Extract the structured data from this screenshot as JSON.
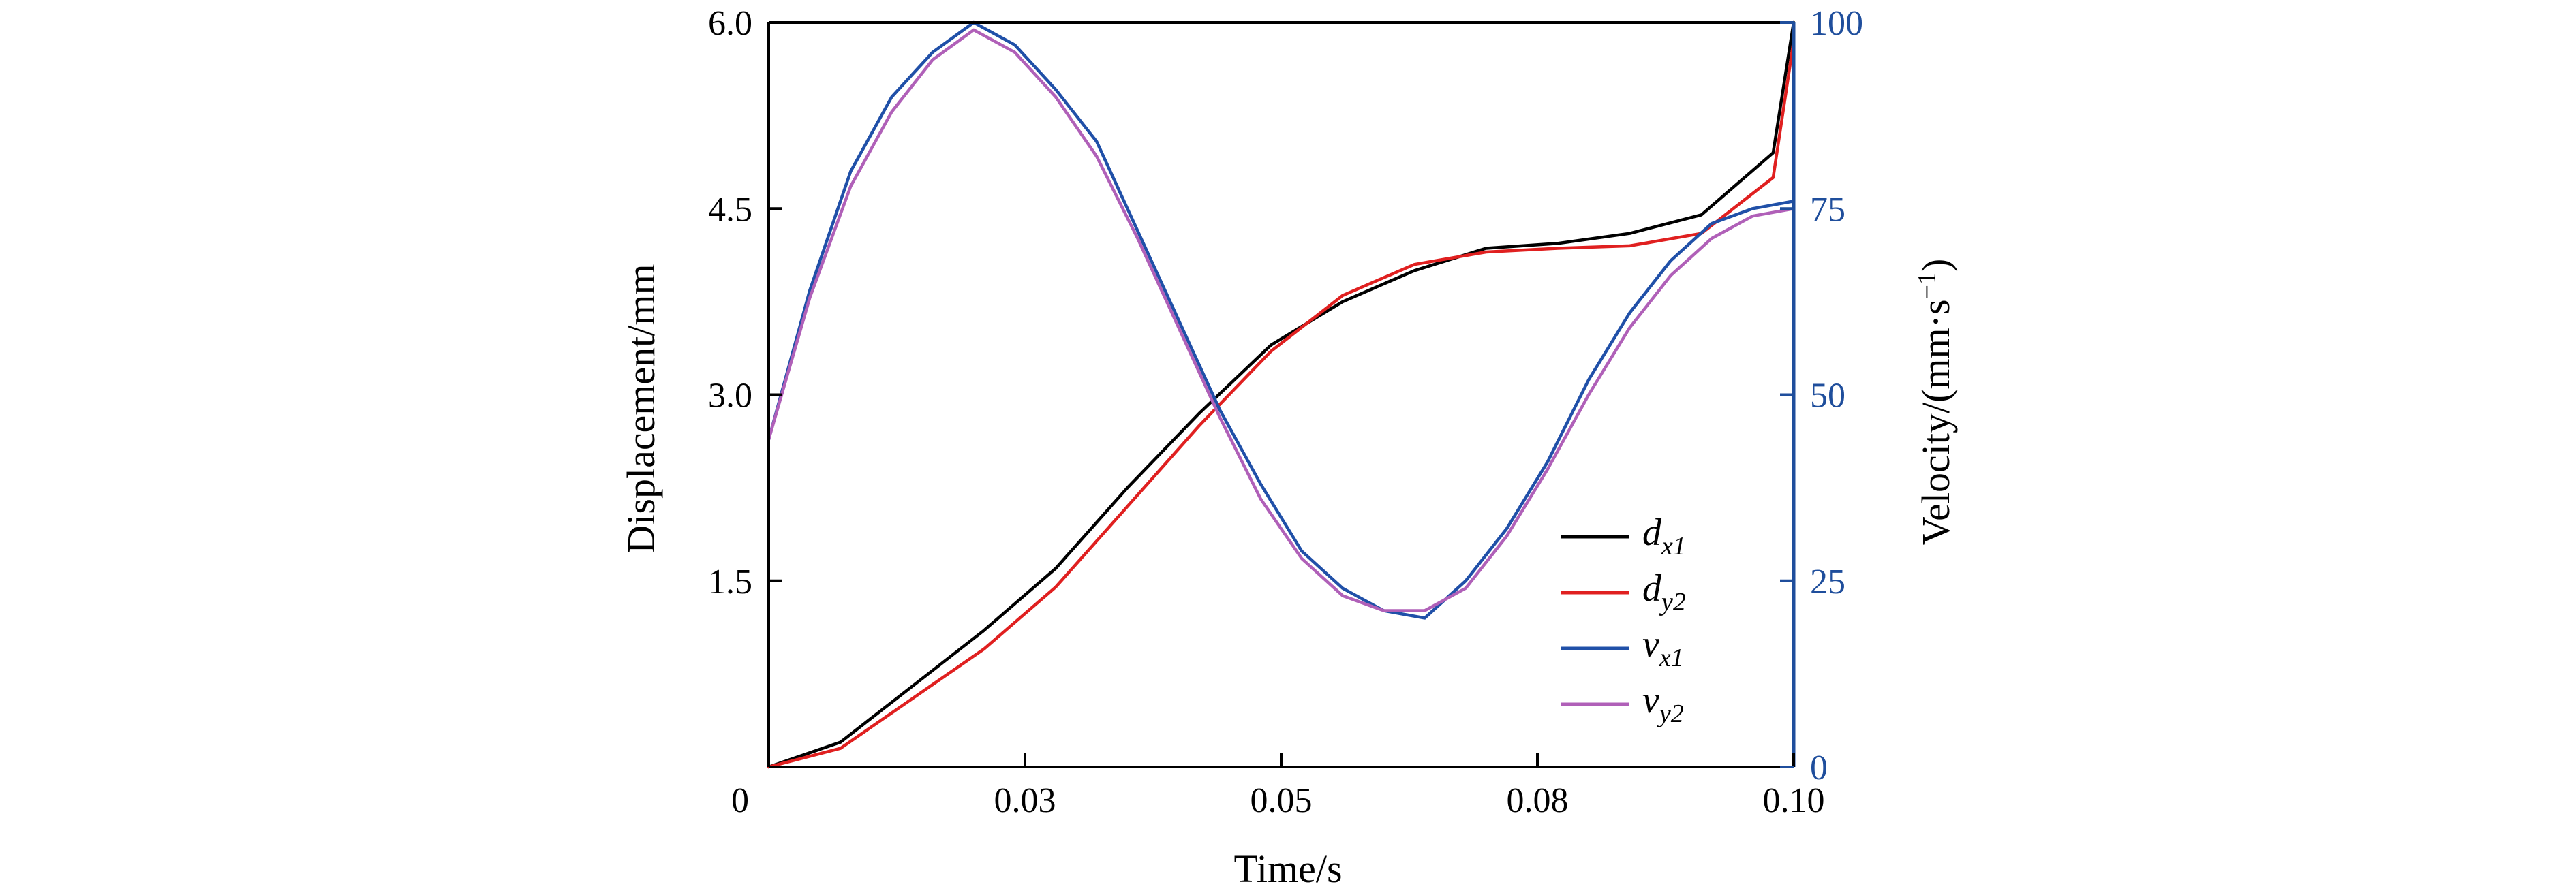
{
  "chart_data": {
    "type": "line",
    "xlabel": "Time/s",
    "ylabel_left": "Displacement/mm",
    "ylabel_right": "Velocity/(mm·s",
    "ylabel_right_sup": "−1",
    "ylabel_right_close": ")",
    "xlim": [
      0.0,
      0.1
    ],
    "ylim_left": [
      0,
      6.0
    ],
    "ylim_right": [
      0,
      100
    ],
    "x_ticks": [
      {
        "value": 0.0,
        "label": "0"
      },
      {
        "value": 0.025,
        "label": "0.03"
      },
      {
        "value": 0.05,
        "label": "0.05"
      },
      {
        "value": 0.075,
        "label": "0.08"
      },
      {
        "value": 0.1,
        "label": "0.10"
      }
    ],
    "left_ticks": [
      {
        "value": 1.5,
        "label": "1.5"
      },
      {
        "value": 3.0,
        "label": "3.0"
      },
      {
        "value": 4.5,
        "label": "4.5"
      },
      {
        "value": 6.0,
        "label": "6.0"
      }
    ],
    "right_ticks": [
      {
        "value": 0,
        "label": "0"
      },
      {
        "value": 25,
        "label": "25"
      },
      {
        "value": 50,
        "label": "50"
      },
      {
        "value": 75,
        "label": "75"
      },
      {
        "value": 100,
        "label": "100"
      }
    ],
    "colors": {
      "axis_right": "#1f4e9c",
      "dx1": "#000000",
      "dy2": "#e02020",
      "vx1": "#2050a8",
      "vy2": "#b060b8"
    },
    "legend_position": "lower-right-inside",
    "series": [
      {
        "name_base": "d",
        "name_sub": "x1",
        "axis": "left",
        "color_key": "dx1",
        "x": [
          0.0,
          0.007,
          0.014,
          0.021,
          0.028,
          0.035,
          0.042,
          0.049,
          0.056,
          0.063,
          0.07,
          0.077,
          0.084,
          0.091,
          0.098,
          0.1
        ],
        "y": [
          0.0,
          0.2,
          0.65,
          1.1,
          1.6,
          2.25,
          2.85,
          3.4,
          3.75,
          4.0,
          4.18,
          4.22,
          4.3,
          4.45,
          4.95,
          6.0
        ]
      },
      {
        "name_base": "d",
        "name_sub": "y2",
        "axis": "left",
        "color_key": "dy2",
        "x": [
          0.0,
          0.007,
          0.014,
          0.021,
          0.028,
          0.035,
          0.042,
          0.049,
          0.056,
          0.063,
          0.07,
          0.077,
          0.084,
          0.091,
          0.098,
          0.1
        ],
        "y": [
          0.0,
          0.15,
          0.55,
          0.95,
          1.45,
          2.1,
          2.75,
          3.35,
          3.8,
          4.05,
          4.15,
          4.18,
          4.2,
          4.3,
          4.75,
          5.85
        ]
      },
      {
        "name_base": "v",
        "name_sub": "x1",
        "axis": "right",
        "color_key": "vx1",
        "x": [
          0.0,
          0.004,
          0.008,
          0.012,
          0.016,
          0.02,
          0.024,
          0.028,
          0.032,
          0.036,
          0.04,
          0.044,
          0.048,
          0.052,
          0.056,
          0.06,
          0.064,
          0.068,
          0.072,
          0.076,
          0.08,
          0.084,
          0.088,
          0.092,
          0.096,
          0.1
        ],
        "y": [
          44,
          64,
          80,
          90,
          96,
          100,
          97,
          91,
          84,
          72,
          60,
          48,
          38,
          29,
          24,
          21,
          20,
          25,
          32,
          41,
          52,
          61,
          68,
          73,
          75,
          76
        ]
      },
      {
        "name_base": "v",
        "name_sub": "y2",
        "axis": "right",
        "color_key": "vy2",
        "x": [
          0.0,
          0.004,
          0.008,
          0.012,
          0.016,
          0.02,
          0.024,
          0.028,
          0.032,
          0.036,
          0.04,
          0.044,
          0.048,
          0.052,
          0.056,
          0.06,
          0.064,
          0.068,
          0.072,
          0.076,
          0.08,
          0.084,
          0.088,
          0.092,
          0.096,
          0.1
        ],
        "y": [
          44,
          63,
          78,
          88,
          95,
          99,
          96,
          90,
          82,
          71,
          59,
          47,
          36,
          28,
          23,
          21,
          21,
          24,
          31,
          40,
          50,
          59,
          66,
          71,
          74,
          75
        ]
      }
    ]
  }
}
